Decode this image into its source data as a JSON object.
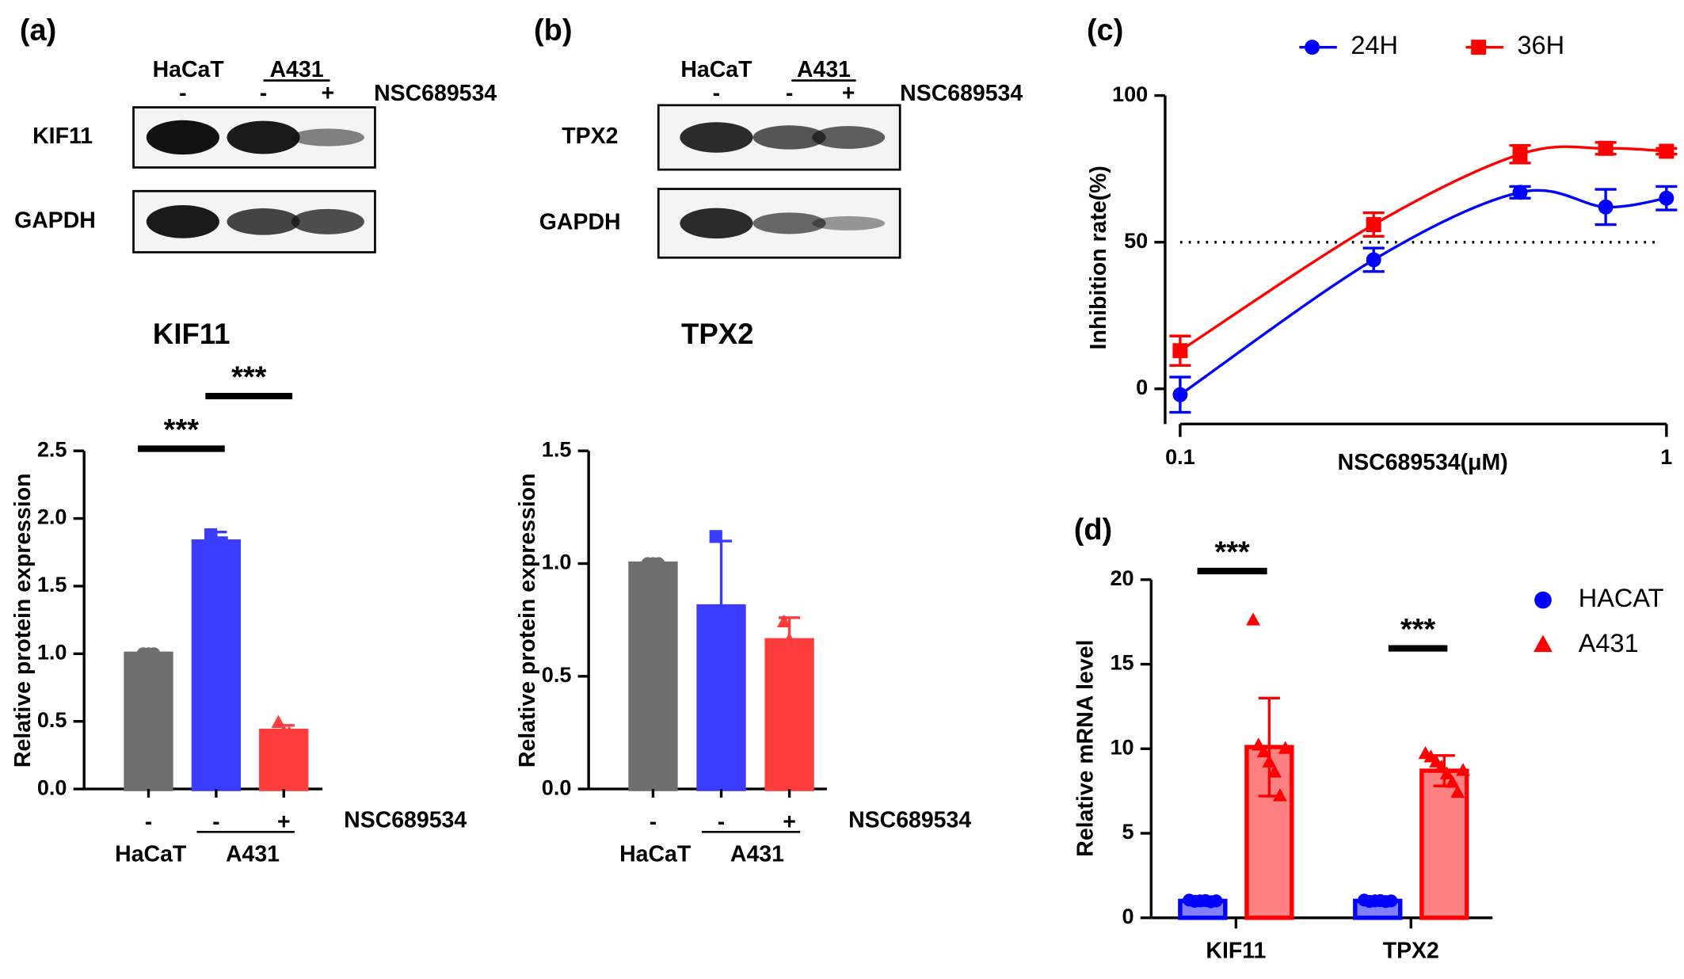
{
  "panel_labels": [
    "(a)",
    "(b)",
    "(c)",
    "(d)"
  ],
  "blots": [
    {
      "groups": [
        "HaCaT",
        "A431"
      ],
      "signs": [
        "-",
        "-",
        "+"
      ],
      "treatment": "NSC689534",
      "rows": [
        "KIF11",
        "GAPDH"
      ]
    },
    {
      "groups": [
        "HaCaT",
        "A431"
      ],
      "signs": [
        "-",
        "-",
        "+"
      ],
      "treatment": "NSC689534",
      "rows": [
        "TPX2",
        "GAPDH"
      ]
    }
  ],
  "chart_data": [
    {
      "type": "bar",
      "title": "KIF11",
      "ylabel": "Relative  protein expression",
      "categories": [
        "-",
        "-",
        "+"
      ],
      "x_groups": [
        "HaCaT",
        "A431"
      ],
      "x_annotation": "NSC689534",
      "values": [
        1.0,
        1.83,
        0.43
      ],
      "errors": [
        0.01,
        0.07,
        0.04
      ],
      "points": [
        [
          1.0,
          1.0,
          1.0
        ],
        [
          1.88,
          1.8,
          1.82
        ],
        [
          0.49,
          0.42,
          0.41
        ]
      ],
      "colors": [
        "#6e6e6e",
        "#3c3cff",
        "#ff3c3c"
      ],
      "markers": [
        "circle",
        "square",
        "triangle"
      ],
      "annotations": [
        "***",
        "***"
      ],
      "ylim": [
        0,
        2.5
      ],
      "yticks": [
        {
          "value": 0,
          "label": "0.0"
        },
        0.5,
        {
          "value": 1,
          "label": "1.0"
        },
        1.5,
        {
          "value": 2,
          "label": "2.0"
        },
        2.5
      ]
    },
    {
      "type": "bar",
      "title": "TPX2",
      "ylabel": "Relative  protein expression",
      "categories": [
        "-",
        "-",
        "+"
      ],
      "x_groups": [
        "HaCaT",
        "A431"
      ],
      "x_annotation": "NSC689534",
      "values": [
        1.0,
        0.81,
        0.66
      ],
      "errors": [
        0.01,
        0.29,
        0.1
      ],
      "points": [
        [
          1.0,
          1.0,
          1.0
        ],
        [
          1.12,
          0.78,
          0.53
        ],
        [
          0.74,
          0.66,
          0.56
        ]
      ],
      "colors": [
        "#6e6e6e",
        "#3c3cff",
        "#ff3c3c"
      ],
      "markers": [
        "circle",
        "square",
        "triangle"
      ],
      "annotations": [],
      "ylim": [
        0,
        1.5
      ],
      "yticks": [
        {
          "value": 0,
          "label": "0.0"
        },
        0.5,
        {
          "value": 1,
          "label": "1.0"
        },
        1.5
      ]
    },
    {
      "type": "line",
      "xlabel": "NSC689534(μM)",
      "ylabel": "Inhibition rate(%)",
      "xscale": "log",
      "x": [
        0.1,
        0.25,
        0.5,
        0.75,
        1
      ],
      "series": [
        {
          "name": "24H",
          "color": "#0000ff",
          "marker": "circle",
          "values": [
            -2,
            44,
            67,
            62,
            65
          ],
          "errors": [
            6,
            4,
            2,
            6,
            4
          ]
        },
        {
          "name": "36H",
          "color": "#ff0000",
          "marker": "square",
          "values": [
            13,
            56,
            80,
            82,
            81
          ],
          "errors": [
            5,
            4,
            3,
            2,
            1
          ]
        }
      ],
      "hline": 50,
      "legend": "top",
      "xlim": [
        0.1,
        1
      ],
      "xticks": [
        0.1,
        1
      ],
      "ylim": [
        -12,
        100
      ],
      "yticks": [
        0,
        50,
        100
      ]
    },
    {
      "type": "bar",
      "ylabel": "Relative mRNA level",
      "categories": [
        "KIF11",
        "TPX2"
      ],
      "series": [
        {
          "name": "HACAT",
          "color": "#0000ff",
          "fill": "#7f7fff",
          "marker": "circle",
          "values": [
            1.0,
            1.0
          ],
          "errors": [
            0.1,
            0.1
          ],
          "points": [
            [
              1.05,
              0.98,
              1.0,
              1.02,
              0.95,
              1.0
            ],
            [
              1.05,
              0.97,
              1.0,
              1.02,
              0.96,
              1.0
            ]
          ]
        },
        {
          "name": "A431",
          "color": "#ff0000",
          "fill": "#ff8080",
          "marker": "triangle",
          "values": [
            10.1,
            8.7
          ],
          "errors": [
            2.9,
            0.9
          ],
          "points": [
            [
              17.6,
              10.2,
              9.8,
              9.2,
              8.6,
              7.2,
              10.0
            ],
            [
              9.7,
              9.5,
              9.2,
              8.9,
              8.5,
              8.0,
              7.4,
              8.7
            ]
          ]
        }
      ],
      "annotations": [
        "***",
        "***"
      ],
      "legend": "right",
      "ylim": [
        0,
        20
      ],
      "yticks": [
        0,
        5,
        10,
        15,
        20
      ]
    }
  ]
}
